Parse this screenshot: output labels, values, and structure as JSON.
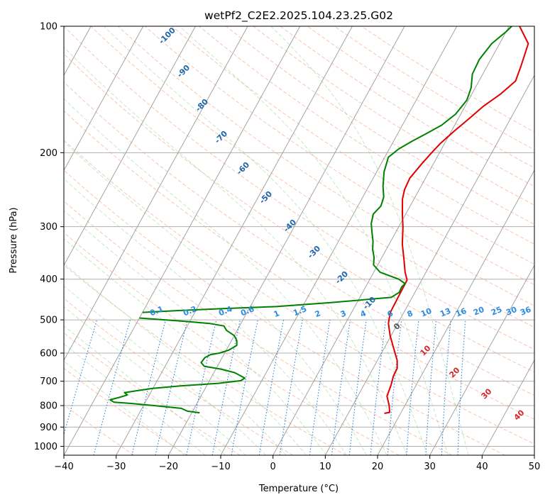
{
  "chart_data": {
    "type": "line",
    "title": "wetPf2_C2E2.2025.104.23.25.G02",
    "xlabel": "Temperature (°C)",
    "ylabel": "Pressure (hPa)",
    "xlim": [
      -40,
      50
    ],
    "ylim": [
      1050,
      100
    ],
    "y_scale": "log",
    "x_ticks": [
      -40,
      -30,
      -20,
      -10,
      0,
      10,
      20,
      30,
      40,
      50
    ],
    "y_ticks": [
      100,
      200,
      300,
      400,
      500,
      600,
      700,
      800,
      900,
      1000
    ],
    "grid": true,
    "skew_isotherm_labels": [
      "-100",
      "-90",
      "-80",
      "-70",
      "-60",
      "-50",
      "-40",
      "-30",
      "-20",
      "-10",
      "0",
      "10",
      "20",
      "30",
      "40"
    ],
    "mixing_ratio_labels": [
      "0.1",
      "0.2",
      "0.4",
      "0.6",
      "1",
      "1.5",
      "2",
      "3",
      "4",
      "6",
      "8",
      "10",
      "13",
      "16",
      "20",
      "25",
      "30",
      "36"
    ],
    "series": [
      {
        "color": "#e00000",
        "points": [
          [
            2,
            100
          ],
          [
            5.5,
            110
          ],
          [
            6.5,
            125
          ],
          [
            7,
            135
          ],
          [
            5.5,
            145
          ],
          [
            3.5,
            155
          ],
          [
            2.2,
            165
          ],
          [
            0.5,
            178
          ],
          [
            -0.8,
            190
          ],
          [
            -1.5,
            200
          ],
          [
            -2.2,
            212
          ],
          [
            -3,
            230
          ],
          [
            -2.8,
            245
          ],
          [
            -2.2,
            258
          ],
          [
            -0.5,
            282
          ],
          [
            0.8,
            300
          ],
          [
            2.5,
            330
          ],
          [
            4.5,
            360
          ],
          [
            6,
            385
          ],
          [
            7.2,
            402
          ],
          [
            7.3,
            440
          ],
          [
            7.4,
            480
          ],
          [
            8.2,
            510
          ],
          [
            9.8,
            545
          ],
          [
            11.5,
            578
          ],
          [
            12.6,
            600
          ],
          [
            13.8,
            625
          ],
          [
            14.6,
            652
          ],
          [
            14.7,
            680
          ],
          [
            15.2,
            715
          ],
          [
            15.6,
            760
          ],
          [
            17,
            800
          ],
          [
            17.8,
            830
          ],
          [
            16.9,
            835
          ]
        ]
      },
      {
        "color": "#008000",
        "points": [
          [
            -40,
            480
          ],
          [
            -33,
            475
          ],
          [
            -25,
            470
          ],
          [
            -15,
            465
          ],
          [
            -5,
            455
          ],
          [
            6,
            442
          ],
          [
            7,
            430
          ],
          [
            6.9,
            418
          ],
          [
            7.2,
            410
          ],
          [
            5.5,
            400
          ],
          [
            1.2,
            385
          ],
          [
            -0.8,
            370
          ],
          [
            -1.5,
            355
          ],
          [
            -2.6,
            340
          ],
          [
            -3.4,
            325
          ],
          [
            -4.5,
            310
          ],
          [
            -5.6,
            295
          ],
          [
            -6.2,
            280
          ],
          [
            -5.6,
            268
          ],
          [
            -6,
            255
          ],
          [
            -7.3,
            240
          ],
          [
            -8.6,
            222
          ],
          [
            -9.3,
            205
          ],
          [
            -8.2,
            196
          ],
          [
            -6.5,
            188
          ],
          [
            -4.5,
            180
          ],
          [
            -2.5,
            172
          ],
          [
            -1,
            162
          ],
          [
            -0.3,
            150
          ],
          [
            -0.8,
            140
          ],
          [
            -2,
            130
          ],
          [
            -2.2,
            120
          ],
          [
            -1.5,
            110
          ],
          [
            0,
            103
          ],
          [
            0.5,
            100
          ]
        ]
      },
      {
        "color": "#008000",
        "points": [
          [
            -40,
            495
          ],
          [
            -35,
            500
          ],
          [
            -30,
            505
          ],
          [
            -26,
            510
          ],
          [
            -23,
            517
          ],
          [
            -22,
            530
          ],
          [
            -20,
            545
          ],
          [
            -19,
            560
          ],
          [
            -18.5,
            575
          ],
          [
            -19.5,
            590
          ],
          [
            -21,
            600
          ],
          [
            -22.5,
            605
          ],
          [
            -23.3,
            615
          ],
          [
            -23.5,
            632
          ],
          [
            -22.5,
            645
          ],
          [
            -19,
            655
          ],
          [
            -16,
            668
          ],
          [
            -13.5,
            688
          ],
          [
            -14,
            698
          ],
          [
            -18,
            708
          ],
          [
            -25,
            718
          ],
          [
            -30,
            728
          ],
          [
            -33,
            738
          ],
          [
            -35,
            745
          ],
          [
            -34.2,
            755
          ],
          [
            -35.5,
            765
          ],
          [
            -37,
            775
          ],
          [
            -36,
            785
          ],
          [
            -33,
            790
          ],
          [
            -28,
            800
          ],
          [
            -22.5,
            812
          ],
          [
            -21,
            825
          ],
          [
            -18.5,
            832
          ]
        ]
      }
    ]
  }
}
